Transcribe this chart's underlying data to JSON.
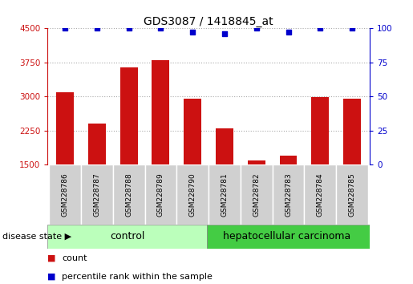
{
  "title": "GDS3087 / 1418845_at",
  "samples": [
    "GSM228786",
    "GSM228787",
    "GSM228788",
    "GSM228789",
    "GSM228790",
    "GSM228781",
    "GSM228782",
    "GSM228783",
    "GSM228784",
    "GSM228785"
  ],
  "counts": [
    3100,
    2400,
    3650,
    3800,
    2950,
    2300,
    1600,
    1700,
    2980,
    2950
  ],
  "percentiles": [
    100,
    100,
    100,
    100,
    97,
    96,
    100,
    97,
    100,
    100
  ],
  "ylim_left": [
    1500,
    4500
  ],
  "ylim_right": [
    0,
    100
  ],
  "yticks_left": [
    1500,
    2250,
    3000,
    3750,
    4500
  ],
  "yticks_right": [
    0,
    25,
    50,
    75,
    100
  ],
  "bar_color": "#cc1111",
  "dot_color": "#0000cc",
  "grid_color": "#aaaaaa",
  "label_bg": "#d0d0d0",
  "control_bg": "#bbffbb",
  "carcinoma_bg": "#44cc44",
  "control_label": "control",
  "carcinoma_label": "hepatocellular carcinoma",
  "group_label": "disease state",
  "n_control": 5,
  "n_carcinoma": 5,
  "legend_count": "count",
  "legend_pct": "percentile rank within the sample",
  "title_fontsize": 10,
  "tick_fontsize": 7.5,
  "sample_fontsize": 6.5,
  "group_fontsize": 9,
  "legend_fontsize": 8
}
